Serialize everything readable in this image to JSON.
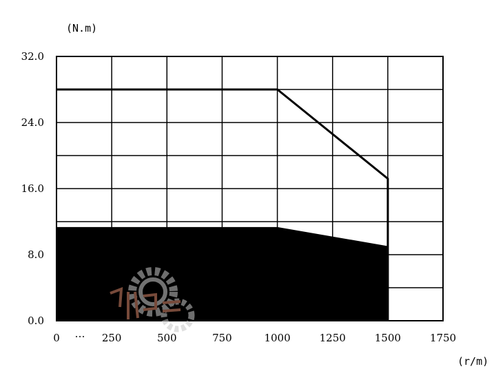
{
  "chart_data": {
    "type": "area",
    "title": "",
    "ylabel": "(N.m)",
    "xlabel": "(r/m)",
    "xlim": [
      0,
      1750
    ],
    "ylim": [
      0,
      32
    ],
    "x_ticks": [
      "0",
      "250",
      "500",
      "750",
      "1000",
      "1250",
      "1500",
      "1750"
    ],
    "x_tick_values": [
      0,
      250,
      500,
      750,
      1000,
      1250,
      1500,
      1750
    ],
    "x_tick_extra": "…",
    "y_ticks": [
      "0.0",
      "8.0",
      "16.0",
      "24.0",
      "32.0"
    ],
    "y_tick_values": [
      0,
      8,
      16,
      24,
      32
    ],
    "grid": true,
    "series": [
      {
        "role": "peak-torque-outline",
        "style": "line",
        "color": "#000000",
        "points": [
          [
            0,
            28
          ],
          [
            1000,
            28
          ],
          [
            1500,
            17.2
          ],
          [
            1500,
            0
          ]
        ]
      },
      {
        "role": "continuous-torque-region",
        "style": "filled",
        "color": "#000000",
        "points": [
          [
            0,
            0
          ],
          [
            0,
            11.3
          ],
          [
            1000,
            11.3
          ],
          [
            1500,
            9.0
          ],
          [
            1500,
            0
          ]
        ]
      }
    ]
  }
}
